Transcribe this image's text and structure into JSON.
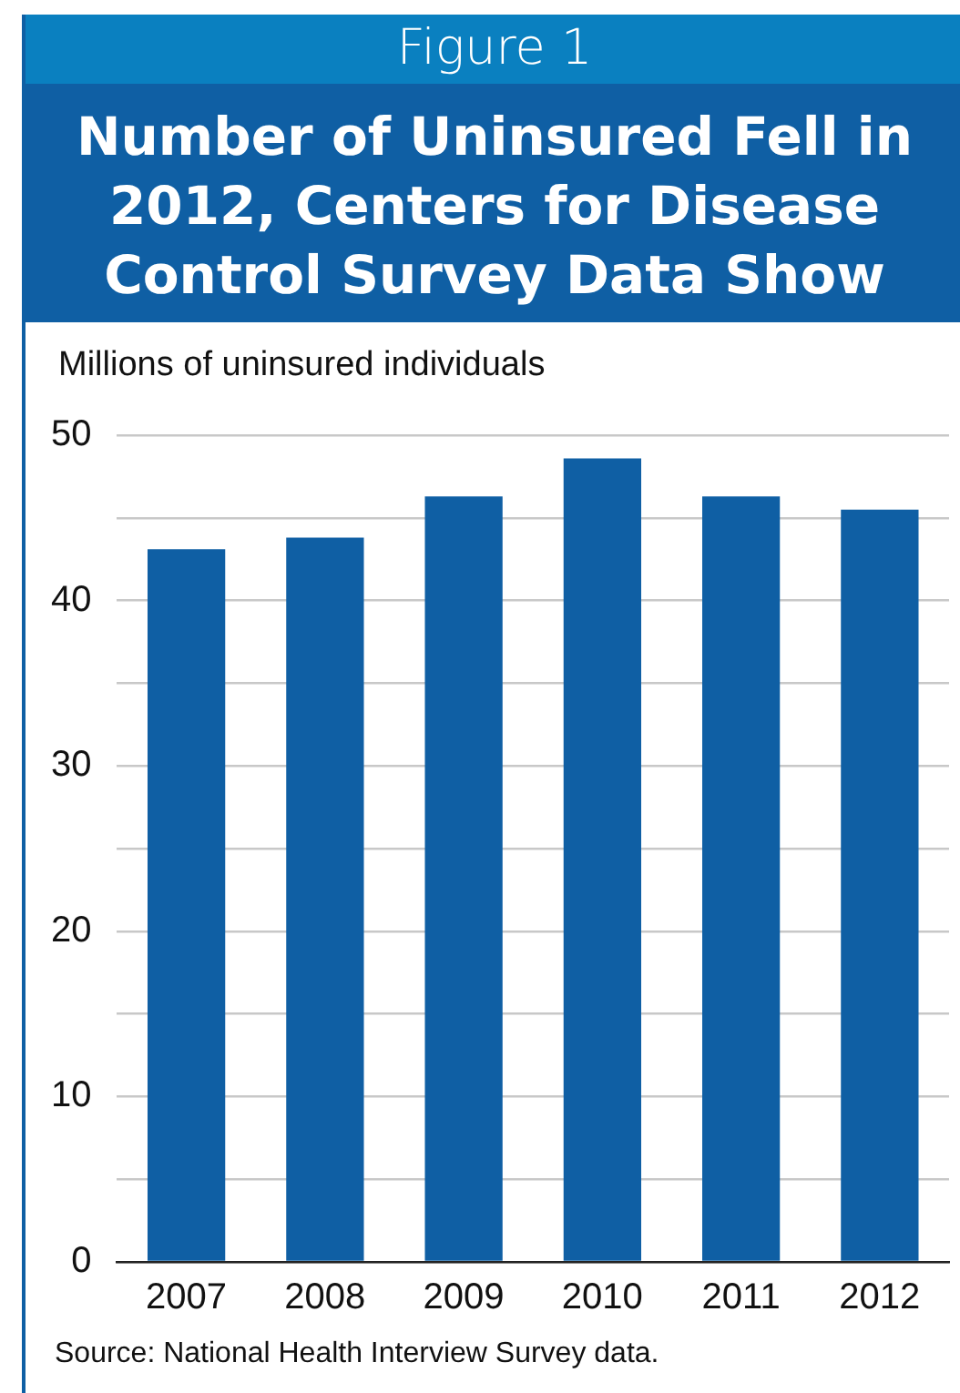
{
  "chart_data": {
    "type": "bar",
    "title": "Number of Uninsured Fell in 2012, Centers for Disease Control Survey Data Show",
    "ylabel": "Millions of uninsured individuals",
    "annotations": [
      "Figure 1",
      "Source: National Health Interview Survey data."
    ],
    "categories": [
      "2007",
      "2008",
      "2009",
      "2010",
      "2011",
      "2012"
    ],
    "values": [
      43.1,
      43.8,
      46.3,
      48.6,
      46.3,
      45.5
    ],
    "color": "#0f5fa4",
    "ylim": [
      0,
      50
    ],
    "yticks": [
      0,
      {
        "value": 5,
        "label": null
      },
      10,
      {
        "value": 15,
        "label": null
      },
      20,
      {
        "value": 25,
        "label": null
      },
      30,
      {
        "value": 35,
        "label": null
      },
      40,
      {
        "value": 45,
        "label": null
      },
      50
    ],
    "grid": "y",
    "legend": false
  }
}
